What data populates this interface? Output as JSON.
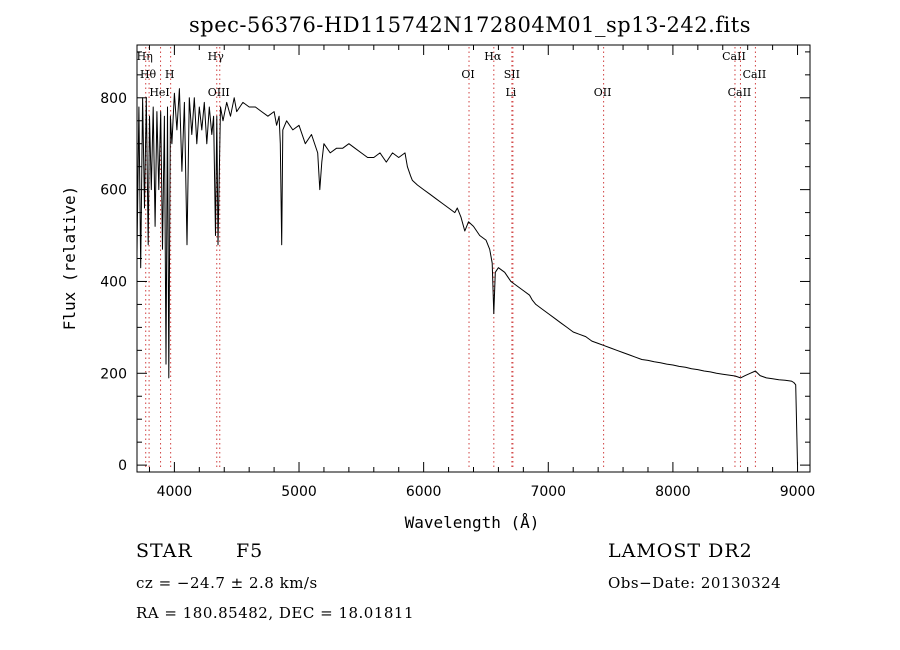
{
  "chart_data": {
    "type": "line",
    "title": "spec-56376-HD115742N172804M01_sp13-242.fits",
    "xlabel": "Wavelength (Å)",
    "ylabel": "Flux (relative)",
    "xlim": [
      3700,
      9100
    ],
    "ylim": [
      -15,
      915
    ],
    "xticks": [
      4000,
      5000,
      6000,
      7000,
      8000,
      9000
    ],
    "yticks": [
      0,
      200,
      400,
      600,
      800
    ],
    "grid": false,
    "series": [
      {
        "x": [
          3700,
          3715,
          3730,
          3745,
          3760,
          3775,
          3790,
          3800,
          3815,
          3830,
          3845,
          3860,
          3875,
          3890,
          3905,
          3920,
          3933,
          3945,
          3955,
          3968,
          3980,
          4000,
          4020,
          4040,
          4060,
          4080,
          4101,
          4120,
          4140,
          4160,
          4180,
          4200,
          4220,
          4240,
          4260,
          4280,
          4300,
          4315,
          4330,
          4340,
          4350,
          4370,
          4390,
          4420,
          4450,
          4480,
          4500,
          4550,
          4600,
          4650,
          4700,
          4750,
          4800,
          4820,
          4840,
          4850,
          4861,
          4870,
          4900,
          4950,
          5000,
          5050,
          5100,
          5150,
          5167,
          5183,
          5200,
          5250,
          5300,
          5350,
          5400,
          5450,
          5500,
          5550,
          5600,
          5650,
          5700,
          5750,
          5800,
          5850,
          5870,
          5895,
          5910,
          5950,
          6000,
          6050,
          6100,
          6150,
          6200,
          6250,
          6270,
          6300,
          6330,
          6360,
          6400,
          6450,
          6500,
          6530,
          6550,
          6563,
          6575,
          6600,
          6650,
          6700,
          6750,
          6800,
          6850,
          6870,
          6900,
          6950,
          7000,
          7050,
          7100,
          7150,
          7200,
          7250,
          7300,
          7350,
          7400,
          7450,
          7500,
          7550,
          7600,
          7650,
          7700,
          7750,
          7800,
          7850,
          7900,
          7950,
          8000,
          8050,
          8100,
          8150,
          8200,
          8250,
          8300,
          8350,
          8400,
          8450,
          8500,
          8542,
          8580,
          8620,
          8662,
          8700,
          8750,
          8800,
          8850,
          8900,
          8950,
          8970,
          8985,
          8995,
          9000
        ],
        "y": [
          460,
          780,
          430,
          800,
          560,
          800,
          480,
          760,
          600,
          780,
          520,
          770,
          600,
          770,
          470,
          760,
          220,
          780,
          190,
          760,
          700,
          810,
          730,
          820,
          640,
          790,
          480,
          800,
          720,
          800,
          700,
          780,
          730,
          790,
          700,
          780,
          720,
          760,
          500,
          760,
          480,
          780,
          750,
          790,
          760,
          800,
          770,
          790,
          780,
          780,
          770,
          760,
          770,
          740,
          760,
          700,
          480,
          730,
          750,
          730,
          740,
          700,
          720,
          680,
          600,
          660,
          700,
          680,
          690,
          690,
          700,
          690,
          680,
          670,
          670,
          680,
          660,
          680,
          670,
          680,
          650,
          630,
          620,
          610,
          600,
          590,
          580,
          570,
          560,
          550,
          560,
          540,
          510,
          530,
          520,
          500,
          490,
          470,
          440,
          330,
          420,
          430,
          420,
          400,
          390,
          380,
          370,
          360,
          350,
          340,
          330,
          320,
          310,
          300,
          290,
          285,
          280,
          270,
          265,
          260,
          255,
          250,
          245,
          240,
          235,
          230,
          228,
          225,
          223,
          220,
          218,
          215,
          213,
          210,
          208,
          205,
          203,
          200,
          198,
          196,
          194,
          190,
          195,
          200,
          205,
          195,
          190,
          188,
          186,
          185,
          183,
          180,
          175,
          60,
          0
        ],
        "name": ""
      }
    ],
    "line_markers": [
      {
        "wavelength": 3770,
        "label": "Hη"
      },
      {
        "wavelength": 3797,
        "label": "Hθ"
      },
      {
        "wavelength": 3889,
        "label": "HeI"
      },
      {
        "wavelength": 3970,
        "label": "H"
      },
      {
        "wavelength": 4340,
        "label": "Hγ"
      },
      {
        "wavelength": 4364,
        "label": "OIII"
      },
      {
        "wavelength": 6364,
        "label": "OI"
      },
      {
        "wavelength": 6563,
        "label": "Hα"
      },
      {
        "wavelength": 6716,
        "label": "SII"
      },
      {
        "wavelength": 6708,
        "label": "Li"
      },
      {
        "wavelength": 7444,
        "label": "OII"
      },
      {
        "wavelength": 8498,
        "label": "CaII"
      },
      {
        "wavelength": 8542,
        "label": "CaII"
      },
      {
        "wavelength": 8662,
        "label": "CaII"
      }
    ]
  },
  "footer": {
    "object_class": "STAR",
    "subclass": "F5",
    "survey": "LAMOST DR2",
    "redshift": "cz = −24.7 ± 2.8 km/s",
    "obs_date": "Obs−Date: 20130324",
    "coords": "RA = 180.85482, DEC =  18.01811"
  }
}
